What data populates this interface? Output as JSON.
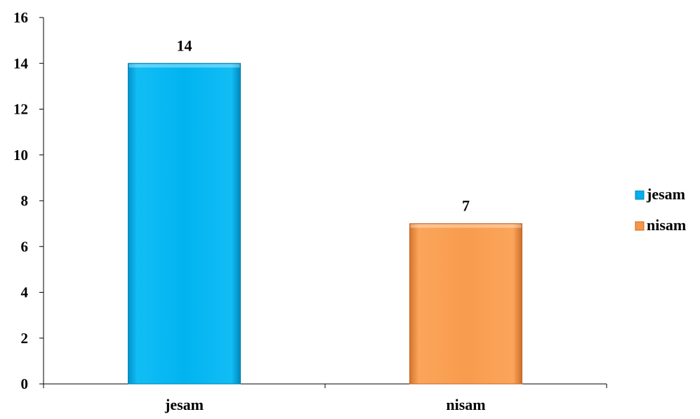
{
  "chart_data": {
    "type": "bar",
    "title": "",
    "xlabel": "",
    "ylabel": "",
    "categories": [
      "jesam",
      "nisam"
    ],
    "series": [
      {
        "name": "jesam",
        "values": [
          14,
          null
        ],
        "color": "#00B0F0"
      },
      {
        "name": "nisam",
        "values": [
          null,
          7
        ],
        "color": "#F79646"
      }
    ],
    "values": [
      14,
      7
    ],
    "data_labels": [
      "14",
      "7"
    ],
    "ylim": [
      0,
      16
    ],
    "yticks": [
      0,
      2,
      4,
      6,
      8,
      10,
      12,
      14,
      16
    ],
    "ytick_labels": [
      "0",
      "2",
      "4",
      "6",
      "8",
      "10",
      "12",
      "14",
      "16"
    ],
    "grid": false,
    "legend_position": "right",
    "legend": [
      {
        "label": "jesam",
        "color": "#00B0F0"
      },
      {
        "label": "nisam",
        "color": "#F79646"
      }
    ]
  }
}
